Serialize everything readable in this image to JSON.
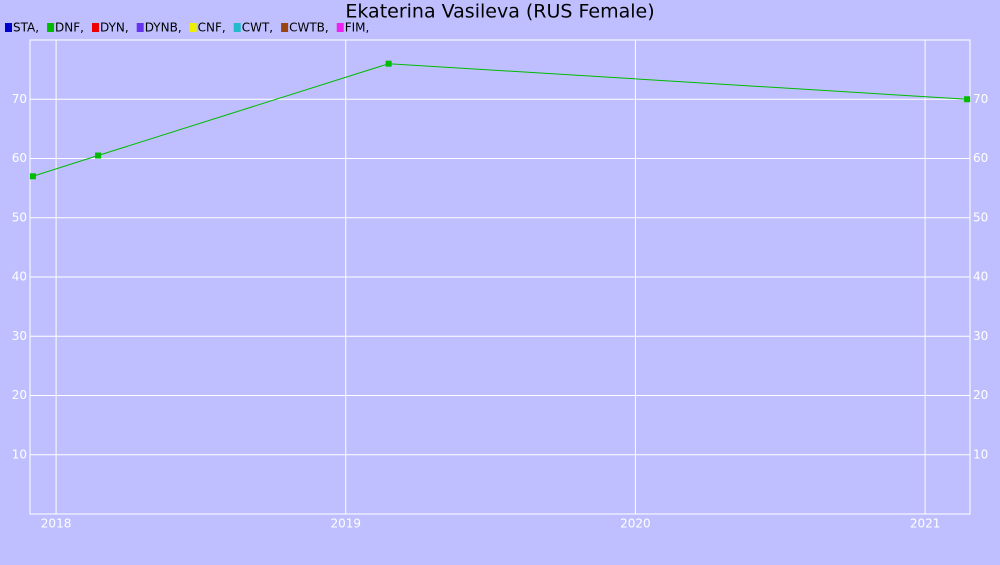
{
  "chart_data": {
    "type": "line",
    "title": "Ekaterina Vasileva (RUS Female)",
    "x": [
      2017.92,
      2018.145,
      2019.148,
      2021.145
    ],
    "series": [
      {
        "name": "STA,",
        "color": "#0000cc",
        "values": [
          null,
          null,
          null,
          null
        ]
      },
      {
        "name": "DNF,",
        "color": "#00bb00",
        "values": [
          57,
          60.5,
          76,
          70
        ]
      },
      {
        "name": "DYN,",
        "color": "#ee0000",
        "values": [
          null,
          null,
          null,
          null
        ]
      },
      {
        "name": "DYNB,",
        "color": "#6633ee",
        "values": [
          null,
          null,
          null,
          null
        ]
      },
      {
        "name": "CNF,",
        "color": "#eeee00",
        "values": [
          null,
          null,
          null,
          null
        ]
      },
      {
        "name": "CWT,",
        "color": "#22bbcc",
        "values": [
          null,
          null,
          null,
          null
        ]
      },
      {
        "name": "CWTB,",
        "color": "#994411",
        "values": [
          null,
          null,
          null,
          null
        ]
      },
      {
        "name": "FIM,",
        "color": "#ee22ee",
        "values": [
          null,
          null,
          null,
          null
        ]
      }
    ],
    "xlim": [
      2017.91,
      2021.155
    ],
    "xticks": [
      2018,
      2019,
      2020,
      2021
    ],
    "ylim": [
      0,
      80
    ],
    "yticks": [
      10,
      20,
      30,
      40,
      50,
      60,
      70
    ],
    "grid": true
  }
}
